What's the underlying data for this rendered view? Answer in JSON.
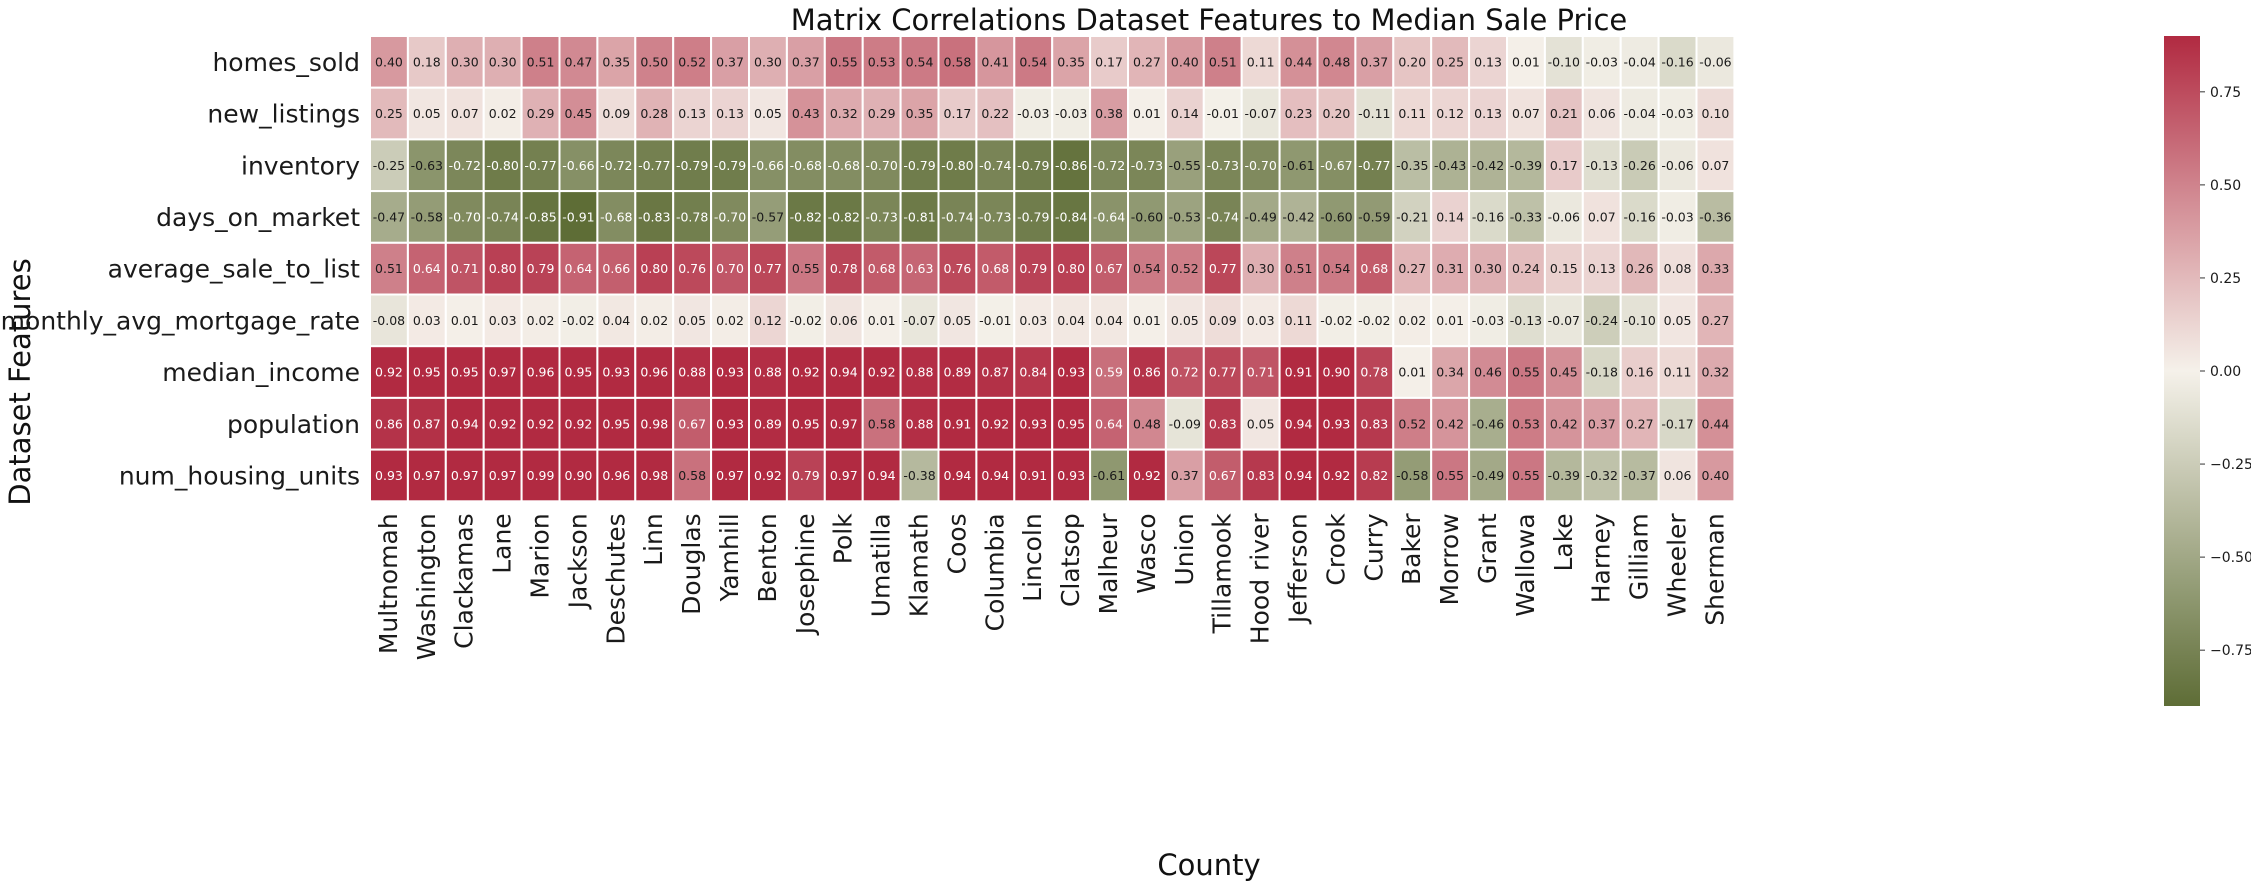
{
  "chart_data": {
    "type": "heatmap",
    "title": "Matrix Correlations Dataset Features to Median Sale Price",
    "xlabel": "County",
    "ylabel": "Dataset Features",
    "x_categories": [
      "Multnomah",
      "Washington",
      "Clackamas",
      "Lane",
      "Marion",
      "Jackson",
      "Deschutes",
      "Linn",
      "Douglas",
      "Yamhill",
      "Benton",
      "Josephine",
      "Polk",
      "Umatilla",
      "Klamath",
      "Coos",
      "Columbia",
      "Lincoln",
      "Clatsop",
      "Malheur",
      "Wasco",
      "Union",
      "Tillamook",
      "Hood river",
      "Jefferson",
      "Crook",
      "Curry",
      "Baker",
      "Morrow",
      "Grant",
      "Wallowa",
      "Lake",
      "Harney",
      "Gilliam",
      "Wheeler",
      "Sherman"
    ],
    "y_categories": [
      "homes_sold",
      "new_listings",
      "inventory",
      "days_on_market",
      "average_sale_to_list",
      "monthly_avg_mortgage_rate",
      "median_income",
      "population",
      "num_housing_units"
    ],
    "values": [
      [
        0.4,
        0.18,
        0.3,
        0.3,
        0.51,
        0.47,
        0.35,
        0.5,
        0.52,
        0.37,
        0.3,
        0.37,
        0.55,
        0.53,
        0.54,
        0.58,
        0.41,
        0.54,
        0.35,
        0.17,
        0.27,
        0.4,
        0.51,
        0.11,
        0.44,
        0.48,
        0.37,
        0.2,
        0.25,
        0.13,
        0.01,
        -0.1,
        -0.03,
        -0.04,
        -0.16,
        -0.06
      ],
      [
        0.25,
        0.05,
        0.07,
        0.02,
        0.29,
        0.45,
        0.09,
        0.28,
        0.13,
        0.13,
        0.05,
        0.43,
        0.32,
        0.29,
        0.35,
        0.17,
        0.22,
        -0.03,
        -0.03,
        0.38,
        0.01,
        0.14,
        -0.01,
        -0.07,
        0.23,
        0.2,
        -0.11,
        0.11,
        0.12,
        0.13,
        0.07,
        0.21,
        0.06,
        -0.04,
        -0.03,
        0.1
      ],
      [
        -0.25,
        -0.63,
        -0.72,
        -0.8,
        -0.77,
        -0.66,
        -0.72,
        -0.77,
        -0.79,
        -0.79,
        -0.66,
        -0.68,
        -0.68,
        -0.7,
        -0.79,
        -0.8,
        -0.74,
        -0.79,
        -0.86,
        -0.72,
        -0.73,
        -0.55,
        -0.73,
        -0.7,
        -0.61,
        -0.67,
        -0.77,
        -0.35,
        -0.43,
        -0.42,
        -0.39,
        0.17,
        -0.13,
        -0.26,
        -0.06,
        0.07
      ],
      [
        -0.47,
        -0.58,
        -0.7,
        -0.74,
        -0.85,
        -0.91,
        -0.68,
        -0.83,
        -0.78,
        -0.7,
        -0.57,
        -0.82,
        -0.82,
        -0.73,
        -0.81,
        -0.74,
        -0.73,
        -0.79,
        -0.84,
        -0.64,
        -0.6,
        -0.53,
        -0.74,
        -0.49,
        -0.42,
        -0.6,
        -0.59,
        -0.21,
        0.14,
        -0.16,
        -0.33,
        -0.06,
        0.07,
        -0.16,
        -0.03,
        -0.36
      ],
      [
        0.51,
        0.64,
        0.71,
        0.8,
        0.79,
        0.64,
        0.66,
        0.8,
        0.76,
        0.7,
        0.77,
        0.55,
        0.78,
        0.68,
        0.63,
        0.76,
        0.68,
        0.79,
        0.8,
        0.67,
        0.54,
        0.52,
        0.77,
        0.3,
        0.51,
        0.54,
        0.68,
        0.27,
        0.31,
        0.3,
        0.24,
        0.15,
        0.13,
        0.26,
        0.08,
        0.33
      ],
      [
        -0.08,
        0.03,
        0.01,
        0.03,
        0.02,
        -0.02,
        0.04,
        0.02,
        0.05,
        0.02,
        0.12,
        -0.02,
        0.06,
        0.01,
        -0.07,
        0.05,
        -0.01,
        0.03,
        0.04,
        0.04,
        0.01,
        0.05,
        0.09,
        0.03,
        0.11,
        -0.02,
        -0.02,
        0.02,
        0.01,
        -0.03,
        -0.13,
        -0.07,
        -0.24,
        -0.1,
        0.05,
        0.27
      ],
      [
        0.92,
        0.95,
        0.95,
        0.97,
        0.96,
        0.95,
        0.93,
        0.96,
        0.88,
        0.93,
        0.88,
        0.92,
        0.94,
        0.92,
        0.88,
        0.89,
        0.87,
        0.84,
        0.93,
        0.59,
        0.86,
        0.72,
        0.77,
        0.71,
        0.91,
        0.9,
        0.78,
        0.01,
        0.34,
        0.46,
        0.55,
        0.45,
        -0.18,
        0.16,
        0.11,
        0.32
      ],
      [
        0.86,
        0.87,
        0.94,
        0.92,
        0.92,
        0.92,
        0.95,
        0.98,
        0.67,
        0.93,
        0.89,
        0.95,
        0.97,
        0.58,
        0.88,
        0.91,
        0.92,
        0.93,
        0.95,
        0.64,
        0.48,
        -0.09,
        0.83,
        0.05,
        0.94,
        0.93,
        0.83,
        0.52,
        0.42,
        -0.46,
        0.53,
        0.42,
        0.37,
        0.27,
        -0.17,
        0.44
      ],
      [
        0.93,
        0.97,
        0.97,
        0.97,
        0.99,
        0.9,
        0.96,
        0.98,
        0.58,
        0.97,
        0.92,
        0.79,
        0.97,
        0.94,
        -0.38,
        0.94,
        0.94,
        0.91,
        0.93,
        -0.61,
        0.92,
        0.37,
        0.67,
        0.83,
        0.94,
        0.92,
        0.82,
        -0.58,
        0.55,
        -0.49,
        0.55,
        -0.39,
        -0.32,
        -0.37,
        0.06,
        0.4
      ]
    ],
    "value_format": "2 decimals",
    "colorbar": {
      "vmin": -0.9,
      "vmax": 0.9,
      "ticks": [
        -0.75,
        -0.5,
        -0.25,
        0.0,
        0.25,
        0.5,
        0.75
      ],
      "tick_labels": [
        "−0.75",
        "−0.50",
        "−0.25",
        "0.00",
        "0.25",
        "0.50",
        "0.75"
      ],
      "colors": {
        "negative": "#5e6d36",
        "center": "#f5f1ea",
        "positive": "#b12a41"
      }
    },
    "grid": false,
    "legend": "colorbar-right"
  }
}
